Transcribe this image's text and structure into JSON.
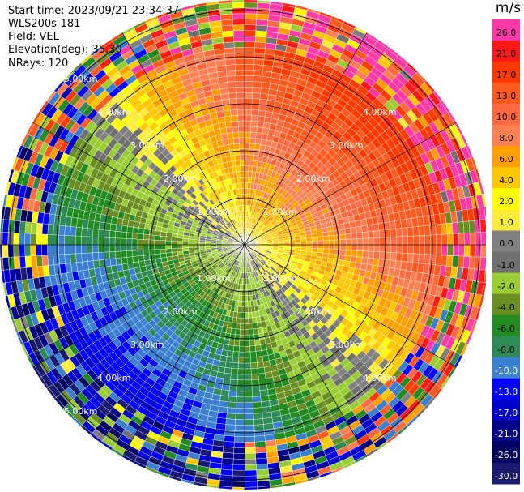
{
  "info": {
    "start_time": "Start time: 2023/09/21 23:34:37",
    "station": "WLS200s-181",
    "field": "Field: VEL",
    "elevation": "Elevation(deg): 35.30",
    "nrays": "NRays: 120"
  },
  "colorbar": {
    "unit": "m/s",
    "labels": [
      "26.0",
      "21.0",
      "17.0",
      "13.0",
      "10.0",
      "8.0",
      "6.0",
      "4.0",
      "2.0",
      "1.0",
      "0.0",
      "-1.0",
      "-2.0",
      "-4.0",
      "-6.0",
      "-8.0",
      "-10.0",
      "-13.0",
      "-17.0",
      "-21.0",
      "-26.0",
      "-30.0"
    ],
    "colors": [
      "#ff3aa8",
      "#ff1a1a",
      "#ff3a00",
      "#ff5a20",
      "#ff6a40",
      "#ff8050",
      "#ffa000",
      "#ffc800",
      "#ffff00",
      "#ffeb3b",
      "#808080",
      "#707070",
      "#9acd32",
      "#6b8e23",
      "#228b22",
      "#2e8b57",
      "#3a7fd0",
      "#0000ff",
      "#0000cd",
      "#00008b",
      "#000060",
      "#191970"
    ]
  },
  "chart_data": {
    "type": "heatmap",
    "projection": "polar (PPI)",
    "field": "VEL",
    "units": "m/s",
    "rings_km": [
      1.0,
      2.0,
      3.0,
      4.0,
      5.0
    ],
    "range_labels": [
      "1.00km",
      "2.00km",
      "3.00km",
      "4.00km",
      "5.00km"
    ],
    "nrays": 120,
    "max_range_km": 5.2,
    "grid": true,
    "spokes_deg": [
      0,
      30,
      60,
      90,
      120,
      150,
      180,
      210,
      240,
      270,
      300,
      330
    ],
    "value_range": [
      -30,
      26
    ],
    "pattern": "velocity dipole: positive (away) toward north-east, negative (toward) toward south-west, near-zero band across north-west and south-east"
  }
}
